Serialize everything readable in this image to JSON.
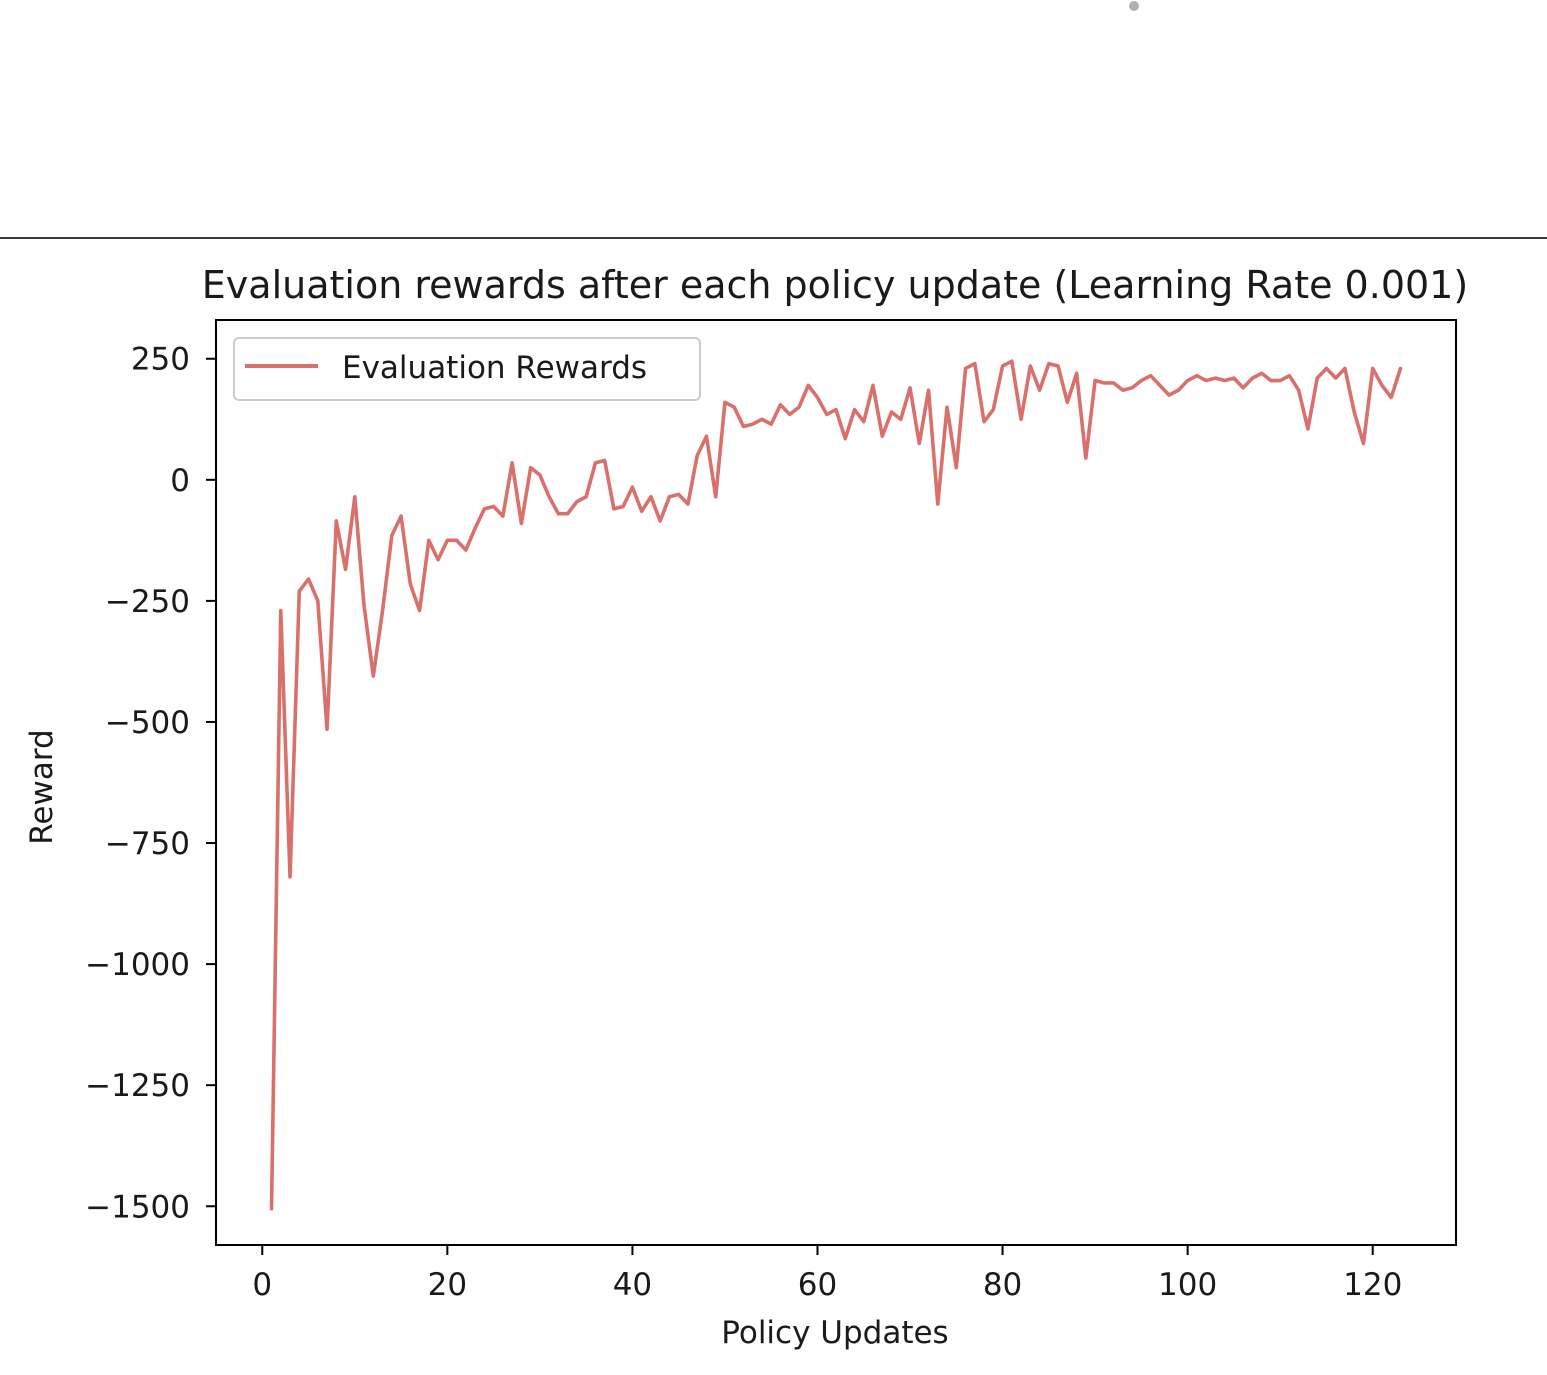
{
  "chart_data": {
    "type": "line",
    "title": "Evaluation rewards after each policy update (Learning Rate 0.001)",
    "xlabel": "Policy Updates",
    "ylabel": "Reward",
    "xlim": [
      -5,
      129
    ],
    "ylim": [
      -1580,
      330
    ],
    "xticks": [
      0,
      20,
      40,
      60,
      80,
      100,
      120
    ],
    "yticks": [
      250,
      0,
      -250,
      -500,
      -750,
      -1000,
      -1250,
      -1500
    ],
    "xtick_labels": [
      "0",
      "20",
      "40",
      "60",
      "80",
      "100",
      "120"
    ],
    "ytick_labels": [
      "250",
      "0",
      "−250",
      "−500",
      "−750",
      "−1000",
      "−1250",
      "−1500"
    ],
    "grid": false,
    "legend_position": "upper-left",
    "series": [
      {
        "name": "Evaluation Rewards",
        "color": "#d9706b",
        "x": [
          1,
          2,
          3,
          4,
          5,
          6,
          7,
          8,
          9,
          10,
          11,
          12,
          13,
          14,
          15,
          16,
          17,
          18,
          19,
          20,
          21,
          22,
          23,
          24,
          25,
          26,
          27,
          28,
          29,
          30,
          31,
          32,
          33,
          34,
          35,
          36,
          37,
          38,
          39,
          40,
          41,
          42,
          43,
          44,
          45,
          46,
          47,
          48,
          49,
          50,
          51,
          52,
          53,
          54,
          55,
          56,
          57,
          58,
          59,
          60,
          61,
          62,
          63,
          64,
          65,
          66,
          67,
          68,
          69,
          70,
          71,
          72,
          73,
          74,
          75,
          76,
          77,
          78,
          79,
          80,
          81,
          82,
          83,
          84,
          85,
          86,
          87,
          88,
          89,
          90,
          91,
          92,
          93,
          94,
          95,
          96,
          97,
          98,
          99,
          100,
          101,
          102,
          103,
          104,
          105,
          106,
          107,
          108,
          109,
          110,
          111,
          112,
          113,
          114,
          115,
          116,
          117,
          118,
          119,
          120,
          121,
          122,
          123
        ],
        "values": [
          -1505,
          -270,
          -820,
          -230,
          -205,
          -250,
          -515,
          -85,
          -185,
          -35,
          -260,
          -405,
          -270,
          -115,
          -75,
          -215,
          -270,
          -125,
          -165,
          -125,
          -125,
          -145,
          -100,
          -60,
          -55,
          -75,
          35,
          -90,
          25,
          10,
          -35,
          -70,
          -70,
          -45,
          -35,
          35,
          40,
          -60,
          -55,
          -15,
          -65,
          -35,
          -85,
          -35,
          -30,
          -50,
          50,
          90,
          -35,
          160,
          150,
          110,
          115,
          125,
          115,
          155,
          135,
          150,
          195,
          170,
          135,
          145,
          85,
          145,
          120,
          195,
          90,
          140,
          125,
          190,
          75,
          185,
          -50,
          150,
          25,
          230,
          240,
          120,
          145,
          235,
          245,
          125,
          235,
          185,
          240,
          235,
          160,
          220,
          45,
          205,
          200,
          200,
          185,
          190,
          205,
          215,
          195,
          175,
          185,
          205,
          215,
          205,
          210,
          205,
          210,
          190,
          210,
          220,
          205,
          205,
          215,
          185,
          105,
          210,
          230,
          210,
          230,
          140,
          75,
          230,
          195,
          170,
          230
        ]
      }
    ]
  }
}
